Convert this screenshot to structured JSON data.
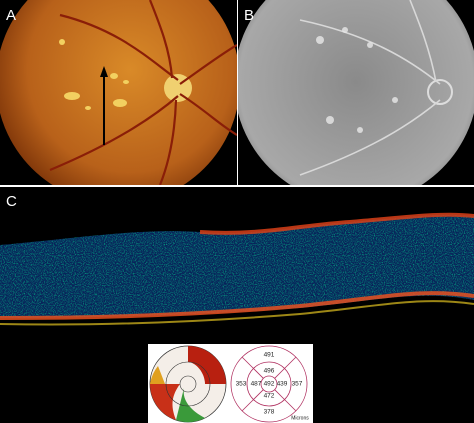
{
  "panels": [
    {
      "label": "A"
    },
    {
      "label": "B"
    },
    {
      "label": "C"
    }
  ],
  "thickness_map": {
    "outer_top": 491,
    "inner_top": 496,
    "outer_left": 353,
    "inner_left": 487,
    "center": 492,
    "inner_right": 439,
    "outer_right": 357,
    "inner_bottom": 472,
    "outer_bottom": 378,
    "unit": "Microns"
  }
}
